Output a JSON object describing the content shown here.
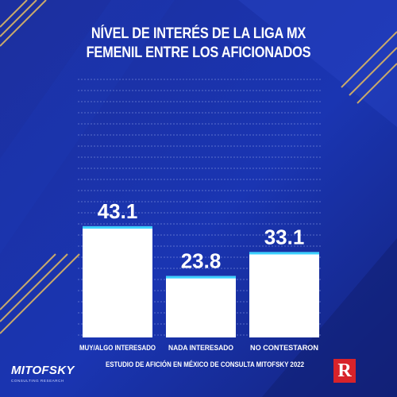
{
  "header": {
    "title_line1": "NÍVEL DE INTERÉS DE LA LIGA MX",
    "title_line2": "FEMENIL ENTRE LOS AFICIONADOS"
  },
  "footer": {
    "source": "ESTUDIO DE AFICIÓN EN MÉXICO DE CONSULTA MITOFSKY 2022",
    "logo_left": "MITOFSKY",
    "logo_left_tagline": "CONSULTING RESEARCH",
    "logo_right": "R"
  },
  "colors": {
    "background": "#1a2ea0",
    "bar": "#ffffff",
    "bar_top_accent": "#3ad0ff",
    "gold_stripe": "#c9a96a"
  },
  "chart_data": {
    "type": "bar",
    "title": "NÍVEL DE INTERÉS DE LA LIGA MX FEMENIL ENTRE LOS AFICIONADOS",
    "categories": [
      "MUY/ALGO INTERESADO",
      "NADA INTERESADO",
      "NO CONTESTARON"
    ],
    "values": [
      43.1,
      23.8,
      33.1
    ],
    "value_labels": [
      "43.1",
      "23.8",
      "33.1"
    ],
    "ylim": [
      0,
      100
    ],
    "grid": true,
    "legend": "none"
  }
}
